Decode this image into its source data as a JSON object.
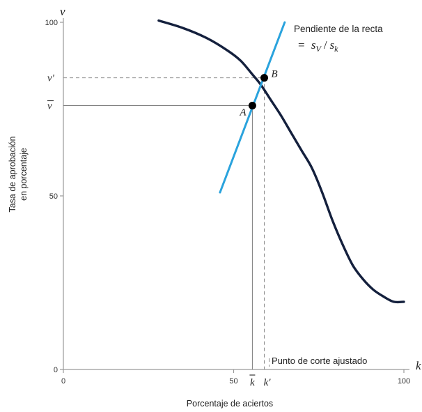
{
  "chart_data": {
    "type": "line",
    "xlabel": "Porcentaje de aciertos",
    "ylabel_lines": [
      "Tasa de aprobación",
      "en porcentaje"
    ],
    "x_axis_symbol": "k",
    "y_axis_symbol": "v",
    "xlim": [
      0,
      100
    ],
    "ylim": [
      0,
      100
    ],
    "x_ticks": [
      {
        "value": 0,
        "label": "0"
      },
      {
        "value": 50,
        "label": "50"
      },
      {
        "value": 100,
        "label": "100"
      }
    ],
    "y_ticks": [
      {
        "value": 0,
        "label": "0"
      },
      {
        "value": 50,
        "label": "50"
      },
      {
        "value": 100,
        "label": "100"
      }
    ],
    "series": [
      {
        "id": "frontier",
        "color": "#14203d",
        "x": [
          28,
          35,
          42,
          48,
          52,
          55.5,
          58,
          61,
          64,
          67,
          70,
          73,
          76,
          79,
          82,
          85,
          88,
          91,
          94,
          97,
          100
        ],
        "y": [
          100.5,
          98.4,
          95.5,
          92,
          89,
          85,
          82,
          77.5,
          73,
          68,
          63,
          58,
          51,
          43,
          36,
          30,
          26,
          23,
          21,
          19.5,
          19.5
        ]
      },
      {
        "id": "slope-line",
        "color": "#2aa3dd",
        "x": [
          46,
          65
        ],
        "y": [
          51,
          100
        ]
      }
    ],
    "points": [
      {
        "label": "A",
        "x": 55.5,
        "y": 76
      },
      {
        "label": "B",
        "x": 59,
        "y": 84
      }
    ],
    "guides": [
      {
        "style": "solid",
        "x": 55.5,
        "y": 76
      },
      {
        "style": "dashed",
        "x": 59,
        "y": 84
      }
    ],
    "x_markers": [
      {
        "x": 55.5,
        "label": "k",
        "bar": true
      },
      {
        "x": 59,
        "label": "k'",
        "bar": false
      }
    ],
    "y_markers": [
      {
        "y": 84,
        "label": "v'",
        "bar": false
      },
      {
        "y": 76,
        "label": "v",
        "bar": true
      }
    ],
    "annotations": {
      "slope_title": "Pendiente de la recta",
      "slope_formula_sv": "s",
      "slope_formula_sv_sub": "V",
      "slope_formula_sk": "s",
      "slope_formula_sk_sub": "k",
      "cutoff_label": "Punto de corte ajustado"
    }
  }
}
